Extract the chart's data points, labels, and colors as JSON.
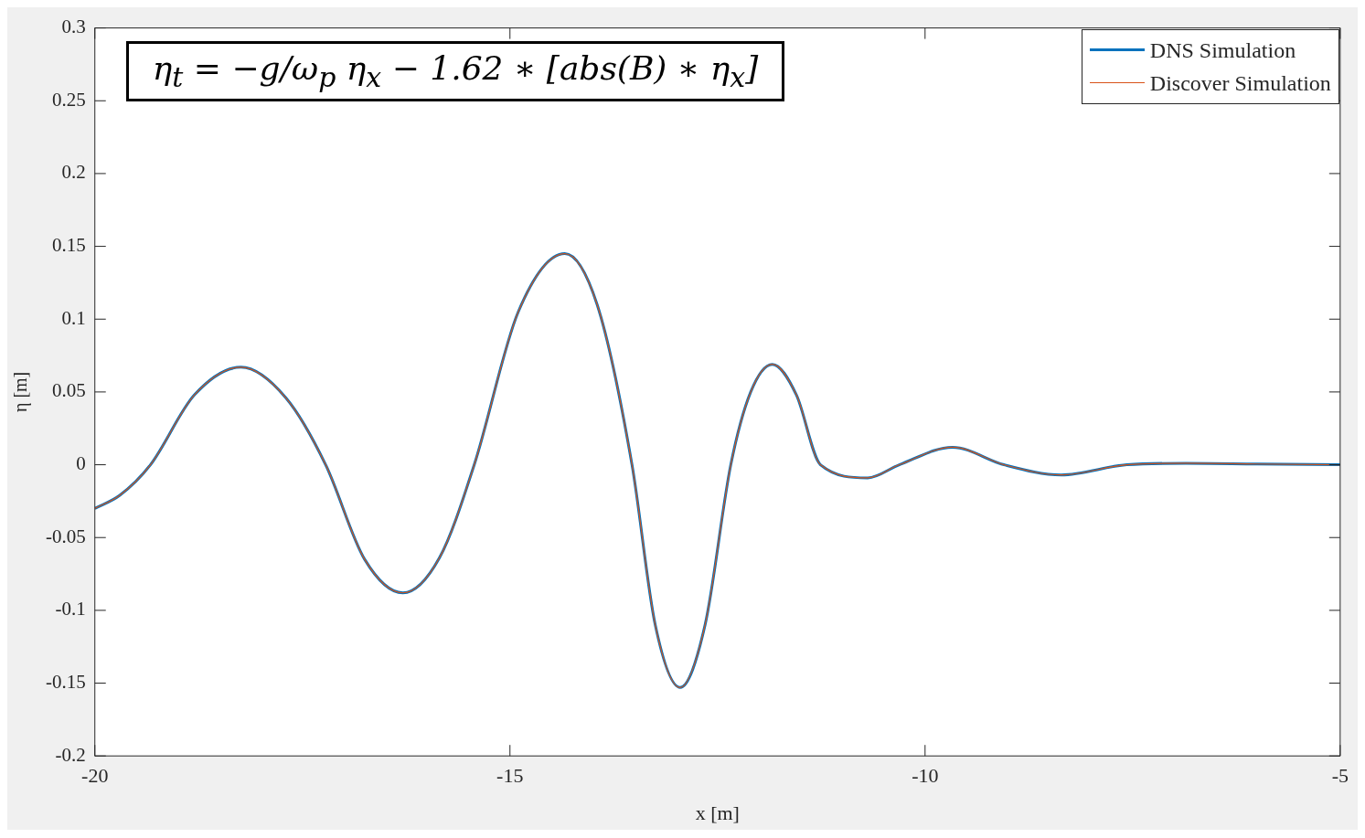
{
  "chart_data": {
    "type": "line",
    "xlabel": "x [m]",
    "ylabel": "η [m]",
    "xlim": [
      -20,
      -5
    ],
    "xticks": [
      -20,
      -15,
      -10,
      -5
    ],
    "ylim": [
      -0.2,
      0.3
    ],
    "yticks": [
      -0.2,
      -0.15,
      -0.1,
      -0.05,
      0,
      0.05,
      0.1,
      0.15,
      0.2,
      0.25,
      0.3
    ],
    "grid": false,
    "legend": "top right",
    "line_style": "solid",
    "marker": "none",
    "annotations": [
      "η$_{t}$ = −g/ω$_{p}$ η$_{x}$ − 1.62 ∗ [abs(B) ∗ η$_{x}$]"
    ],
    "x": [
      -20,
      -19.7,
      -19.33,
      -18.8,
      -18.24,
      -17.7,
      -17.22,
      -16.75,
      -16.29,
      -15.85,
      -15.43,
      -14.9,
      -14.34,
      -13.95,
      -13.53,
      -13.25,
      -12.95,
      -12.65,
      -12.34,
      -12.1,
      -11.84,
      -11.55,
      -11.26,
      -10.69,
      -10.31,
      -9.67,
      -9.05,
      -8.36,
      -7.57,
      -6.86,
      -6,
      -5
    ],
    "series": [
      {
        "name": "DNS Simulation",
        "color": "#0072bd",
        "values": [
          -0.03,
          -0.021,
          0,
          0.048,
          0.067,
          0.046,
          0,
          -0.065,
          -0.088,
          -0.064,
          0,
          0.105,
          0.145,
          0.11,
          0,
          -0.11,
          -0.153,
          -0.11,
          0,
          0.05,
          0.069,
          0.048,
          0,
          -0.009,
          0,
          0.012,
          0,
          -0.007,
          0,
          0.001,
          0.0005,
          0
        ]
      },
      {
        "name": "Discover Simulation",
        "color": "#d95319",
        "values": [
          -0.03,
          -0.021,
          0,
          0.048,
          0.067,
          0.046,
          0,
          -0.065,
          -0.088,
          -0.064,
          0,
          0.105,
          0.145,
          0.11,
          0,
          -0.11,
          -0.153,
          -0.11,
          0,
          0.05,
          0.069,
          0.048,
          0,
          -0.009,
          0,
          0.012,
          0,
          -0.007,
          0,
          0.001,
          0.0005,
          0
        ]
      }
    ]
  }
}
